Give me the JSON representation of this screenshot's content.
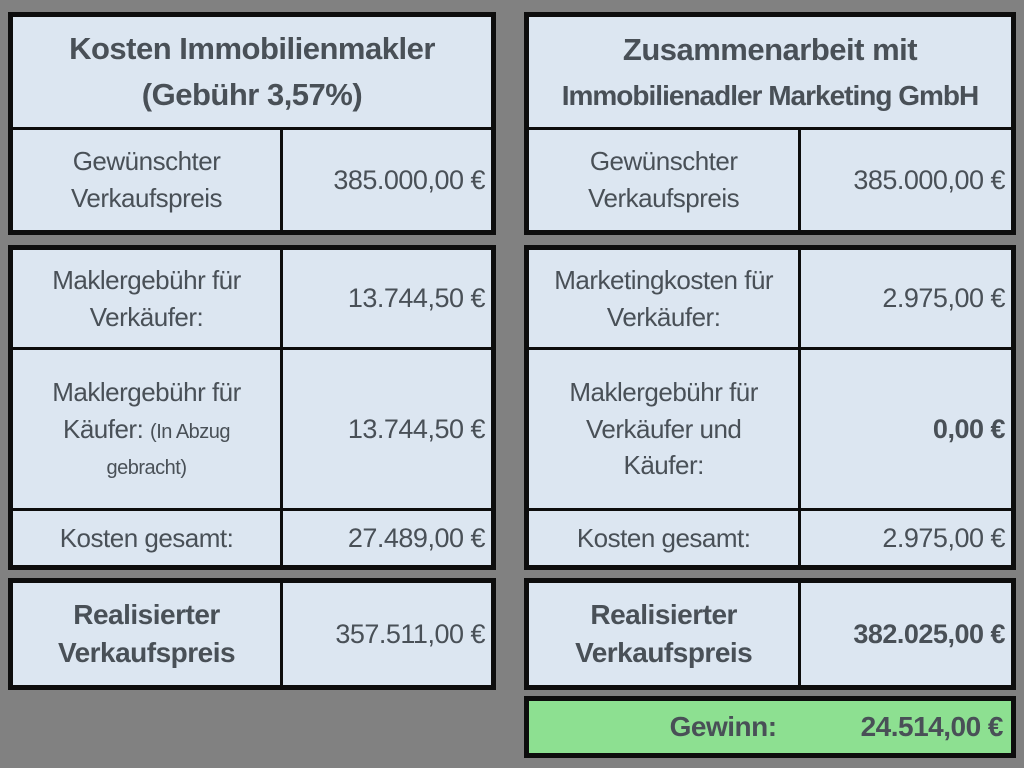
{
  "colors": {
    "background": "#818181",
    "cell_background": "#dce6f1",
    "profit_row_background": "#8de091",
    "border": "#0d0d0d",
    "text": "#495057"
  },
  "left_table": {
    "title_line1": "Kosten Immobilienmakler",
    "title_line2": "(Gebühr 3,57%)",
    "rows": {
      "desired_price": {
        "label": "Gewünschter\nVerkaufspreis",
        "value": "385.000,00 €"
      },
      "seller_fee": {
        "label": "Maklergebühr für\nVerkäufer:",
        "value": "13.744,50 €"
      },
      "buyer_fee": {
        "label": "Maklergebühr für\nKäufer:",
        "note": "(In Abzug\ngebracht)",
        "value": "13.744,50 €"
      },
      "total_costs": {
        "label": "Kosten gesamt:",
        "value": "27.489,00 €"
      },
      "realized_price": {
        "label": "Realisierter\nVerkaufspreis",
        "value": "357.511,00 €"
      }
    }
  },
  "right_table": {
    "title_line1": "Zusammenarbeit mit",
    "title_line2": "Immobilienadler Marketing GmbH",
    "rows": {
      "desired_price": {
        "label": "Gewünschter\nVerkaufspreis",
        "value": "385.000,00 €"
      },
      "marketing_costs": {
        "label": "Marketingkosten für\nVerkäufer:",
        "value": "2.975,00 €"
      },
      "broker_fee": {
        "label": "Maklergebühr für\nVerkäufer und\nKäufer:",
        "value": "0,00 €"
      },
      "total_costs": {
        "label": "Kosten gesamt:",
        "value": "2.975,00 €"
      },
      "realized_price": {
        "label": "Realisierter\nVerkaufspreis",
        "value": "382.025,00 €"
      },
      "profit": {
        "label": "Gewinn:",
        "value": "24.514,00 €"
      }
    }
  }
}
